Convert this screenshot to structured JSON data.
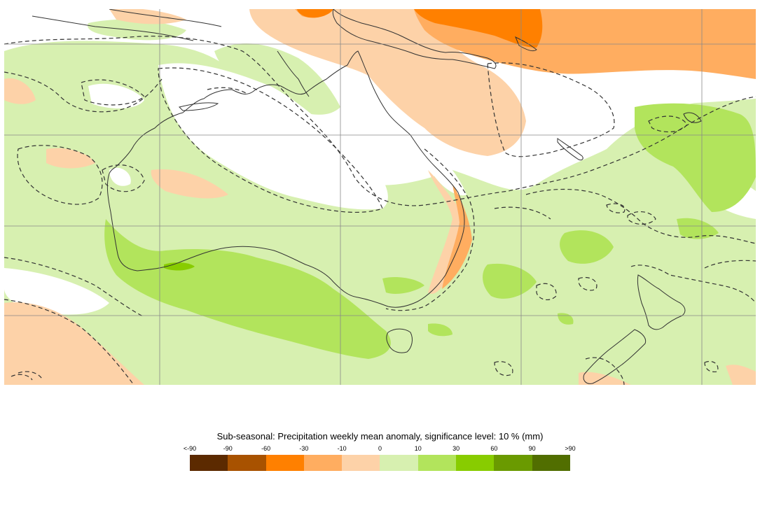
{
  "legend": {
    "title": "Sub-seasonal: Precipitation weekly mean anomaly, significance level: 10 % (mm)",
    "tick_labels": [
      "<-90",
      "-90",
      "-60",
      "-30",
      "-10",
      "0",
      "10",
      "30",
      "60",
      "90",
      ">90"
    ],
    "colors": [
      "#5c2a00",
      "#a85200",
      "#ff8000",
      "#ffad60",
      "#fdd2a8",
      "#d7f0b0",
      "#b2e45c",
      "#88cc00",
      "#6a9a00",
      "#516e00"
    ]
  },
  "map": {
    "region": "Australia and surrounding oceans",
    "background_color": "#ffffff",
    "land_outline_color": "#333333",
    "significance_contour": "dashed"
  }
}
